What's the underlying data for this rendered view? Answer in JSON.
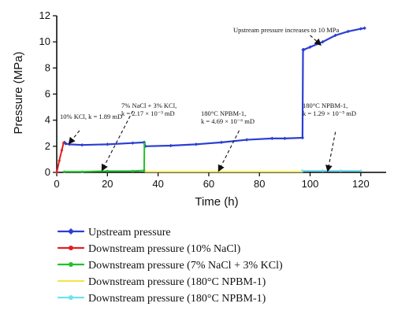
{
  "chart_data": {
    "type": "line",
    "xlabel": "Time (h)",
    "ylabel": "Pressure (MPa)",
    "xlim": [
      0,
      130
    ],
    "ylim": [
      0,
      12
    ],
    "xticks": [
      "0",
      "20",
      "40",
      "60",
      "80",
      "100",
      "120"
    ],
    "yticks": [
      "0",
      "2",
      "4",
      "6",
      "8",
      "10",
      "12"
    ],
    "xtick_values": [
      0,
      20,
      40,
      60,
      80,
      100,
      120
    ],
    "ytick_values": [
      0,
      2,
      4,
      6,
      8,
      10,
      12
    ],
    "grid": false,
    "legend_position": "below",
    "series": [
      {
        "name": "Upstream pressure",
        "color": "#2a3fd1",
        "marker": "diamond",
        "x": [
          3,
          3.3,
          3.6,
          5,
          10,
          20,
          30,
          34.5,
          35,
          45,
          55,
          65,
          75,
          85,
          90,
          97,
          97.2,
          97.5,
          100,
          105,
          110,
          115,
          120,
          121.5
        ],
        "y": [
          2.3,
          2.25,
          2.2,
          2.15,
          2.1,
          2.15,
          2.25,
          2.3,
          2.0,
          2.05,
          2.15,
          2.3,
          2.5,
          2.6,
          2.6,
          2.65,
          9.4,
          9.4,
          9.6,
          10.0,
          10.5,
          10.8,
          11.0,
          11.05
        ]
      },
      {
        "name": "Downstream pressure (10% NaCl)",
        "color": "#e02020",
        "marker": "circle",
        "x": [
          0,
          1,
          2,
          2.7
        ],
        "y": [
          0,
          0.9,
          1.7,
          2.25
        ]
      },
      {
        "name": "Downstream pressure (7% NaCl + 3% KCl)",
        "color": "#22c22a",
        "marker": "circle",
        "x": [
          3,
          10,
          20,
          30,
          34.5,
          34.6
        ],
        "y": [
          0.05,
          0.05,
          0.1,
          0.1,
          0.15,
          2.2
        ]
      },
      {
        "name": "Downstream pressure (180°C NPBM-1)",
        "color": "#f2e64e",
        "marker": "none",
        "x": [
          35,
          50,
          65,
          80,
          97
        ],
        "y": [
          0.05,
          0.05,
          0.05,
          0.05,
          0.05
        ]
      },
      {
        "name": "Downstream pressure (180°C NPBM-1)",
        "color": "#6fe1f2",
        "marker": "circle",
        "x": [
          97,
          105,
          112,
          120
        ],
        "y": [
          0.12,
          0.12,
          0.12,
          0.12
        ]
      }
    ],
    "annotations": [
      {
        "id": "ann-kcl",
        "lines": [
          "10% KCl, k = 1.89 mD"
        ],
        "arrow_from": [
          9,
          3.2
        ],
        "arrow_to": [
          5,
          2.25
        ]
      },
      {
        "id": "ann-nacl-kcl",
        "lines": [
          "7% NaCl + 3% KCl,",
          "k = 2.17 × 10⁻³ mD"
        ],
        "arrow_from": [
          30,
          4.7
        ],
        "arrow_to": [
          18,
          0.2
        ]
      },
      {
        "id": "ann-npbm-1",
        "lines": [
          "180°C NPBM-1,",
          "k = 4.69 × 10⁻⁶ mD"
        ],
        "arrow_from": [
          72,
          3.2
        ],
        "arrow_to": [
          64,
          0.15
        ]
      },
      {
        "id": "ann-npbm-2",
        "lines": [
          "180°C NPBM-1,",
          "k = 1.29 × 10⁻⁵ mD"
        ],
        "arrow_from": [
          110,
          3.1
        ],
        "arrow_to": [
          107,
          0.15
        ]
      },
      {
        "id": "ann-upstream",
        "lines": [
          "Upstream pressure increases to 10 MPa"
        ],
        "arrow_from": [
          100,
          10.5
        ],
        "arrow_to": [
          104,
          9.8
        ]
      }
    ]
  }
}
